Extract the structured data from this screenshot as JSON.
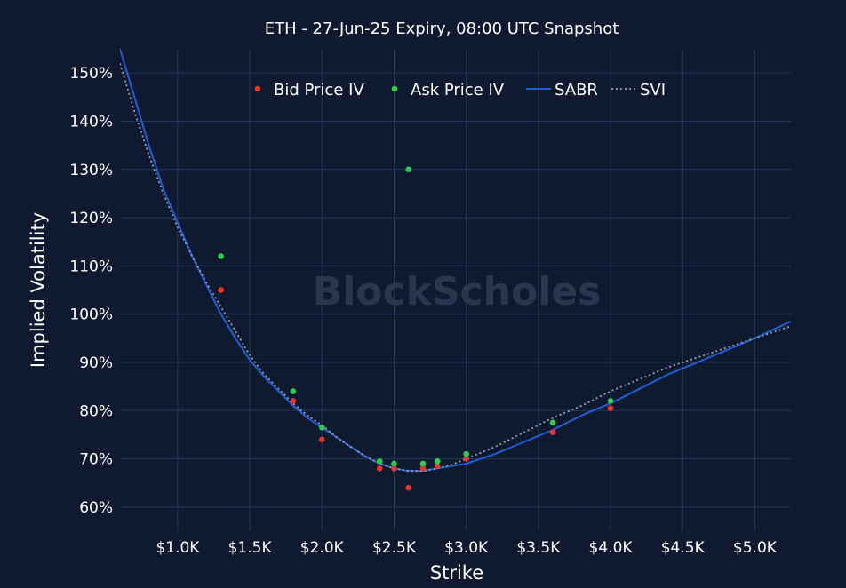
{
  "chart_data": {
    "type": "scatter",
    "title": "ETH - 27-Jun-25 Expiry, 08:00 UTC Snapshot",
    "xlabel": "Strike",
    "ylabel": "Implied Volatility",
    "watermark": "BlockScholes",
    "xlim": [
      600,
      5250
    ],
    "ylim": [
      55,
      155
    ],
    "x_ticks": [
      1000,
      1500,
      2000,
      2500,
      3000,
      3500,
      4000,
      4500,
      5000
    ],
    "x_tick_labels": [
      "$1.0K",
      "$1.5K",
      "$2.0K",
      "$2.5K",
      "$3.0K",
      "$3.5K",
      "$4.0K",
      "$4.5K",
      "$5.0K"
    ],
    "y_ticks": [
      60,
      70,
      80,
      90,
      100,
      110,
      120,
      130,
      140,
      150
    ],
    "y_tick_labels": [
      "60%",
      "70%",
      "80%",
      "90%",
      "100%",
      "110%",
      "120%",
      "130%",
      "140%",
      "150%"
    ],
    "grid": true,
    "legend_position": "top",
    "colors": {
      "background": "#0f1a30",
      "grid": "#24365e",
      "bid": "#e8362a",
      "ask": "#2ecc52",
      "sabr": "#1f5fd6",
      "svi": "#9aa0a8"
    },
    "series": [
      {
        "name": "Bid Price IV",
        "kind": "scatter",
        "x": [
          1300,
          1800,
          2000,
          2400,
          2500,
          2600,
          2700,
          2800,
          3000,
          3600,
          4000
        ],
        "y": [
          105,
          82,
          74,
          68,
          68,
          64,
          68,
          68.5,
          70,
          75.5,
          80.5
        ]
      },
      {
        "name": "Ask Price IV",
        "kind": "scatter",
        "x": [
          1300,
          1800,
          2000,
          2400,
          2500,
          2600,
          2700,
          2800,
          3000,
          3600,
          4000
        ],
        "y": [
          112,
          84,
          76.5,
          69.5,
          69,
          130,
          69,
          69.5,
          71,
          77.5,
          82
        ]
      },
      {
        "name": "SABR",
        "kind": "line",
        "x": [
          600,
          700,
          800,
          900,
          1000,
          1100,
          1200,
          1300,
          1400,
          1500,
          1600,
          1700,
          1800,
          1900,
          2000,
          2100,
          2200,
          2300,
          2400,
          2500,
          2600,
          2700,
          2800,
          2900,
          3000,
          3200,
          3400,
          3600,
          3800,
          4000,
          4200,
          4400,
          4600,
          4800,
          5000,
          5250
        ],
        "y": [
          155,
          145,
          135,
          126,
          119,
          112,
          106,
          100,
          95,
          90.5,
          87,
          84,
          81,
          78.5,
          76.5,
          74.5,
          72.5,
          70.5,
          69,
          68,
          67.5,
          67.5,
          68,
          68.5,
          69,
          71,
          73.5,
          76,
          79,
          81.5,
          84.5,
          87.5,
          90,
          92.5,
          95,
          98.5
        ]
      },
      {
        "name": "SVI",
        "kind": "dotted-line",
        "x": [
          600,
          700,
          800,
          900,
          1000,
          1100,
          1200,
          1300,
          1400,
          1500,
          1600,
          1700,
          1800,
          1900,
          2000,
          2100,
          2200,
          2300,
          2400,
          2500,
          2600,
          2700,
          2800,
          2900,
          3000,
          3200,
          3400,
          3600,
          3800,
          4000,
          4200,
          4400,
          4600,
          4800,
          5000,
          5250
        ],
        "y": [
          152,
          142,
          133,
          125,
          118,
          112,
          106.5,
          101.5,
          96.5,
          91.5,
          87.5,
          84.5,
          81.5,
          79,
          77,
          74.5,
          72.5,
          70.5,
          69,
          68,
          67.5,
          67.5,
          68,
          68.8,
          70,
          72.5,
          75.5,
          78.5,
          81,
          84,
          86.5,
          89,
          91,
          93,
          95,
          97.5
        ]
      }
    ]
  }
}
